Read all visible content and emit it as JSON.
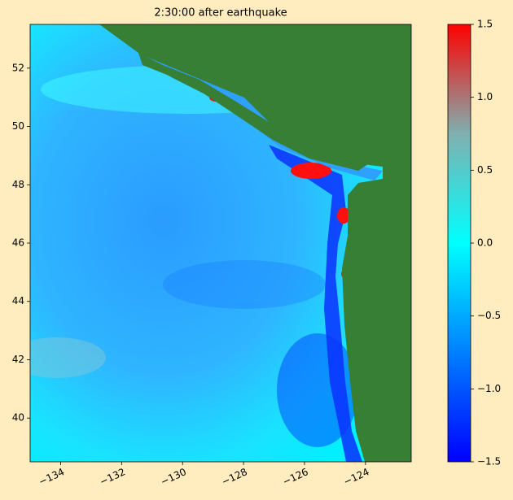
{
  "chart_data": {
    "type": "image",
    "title": "2:30:00 after earthquake",
    "xlim": [
      -135,
      -122.5
    ],
    "xticks": [
      {
        "value": -134,
        "label": "−134"
      },
      {
        "value": -132,
        "label": "−132"
      },
      {
        "value": -130,
        "label": "−130"
      },
      {
        "value": -128,
        "label": "−128"
      },
      {
        "value": -126,
        "label": "−126"
      },
      {
        "value": -124,
        "label": "−124"
      }
    ],
    "ylim": [
      38.5,
      53.5
    ],
    "yticks": [
      40,
      42,
      44,
      46,
      48,
      50,
      52
    ],
    "colorbar": {
      "clim": [
        -1.5,
        1.5
      ],
      "colormap": [
        "#0000ff",
        "#0080ff",
        "#00ffff",
        "#80b0b0",
        "#ff0000"
      ],
      "ticks": [
        {
          "value": -1.5,
          "label": "−1.5"
        },
        {
          "value": -1.0,
          "label": "−1.0"
        },
        {
          "value": -0.5,
          "label": "−0.5"
        },
        {
          "value": 0,
          "label": "0.0"
        },
        {
          "value": 0.5,
          "label": "0.5"
        },
        {
          "value": 1.0,
          "label": "1.0"
        },
        1.5
      ]
    },
    "land_color": "#367f35"
  }
}
